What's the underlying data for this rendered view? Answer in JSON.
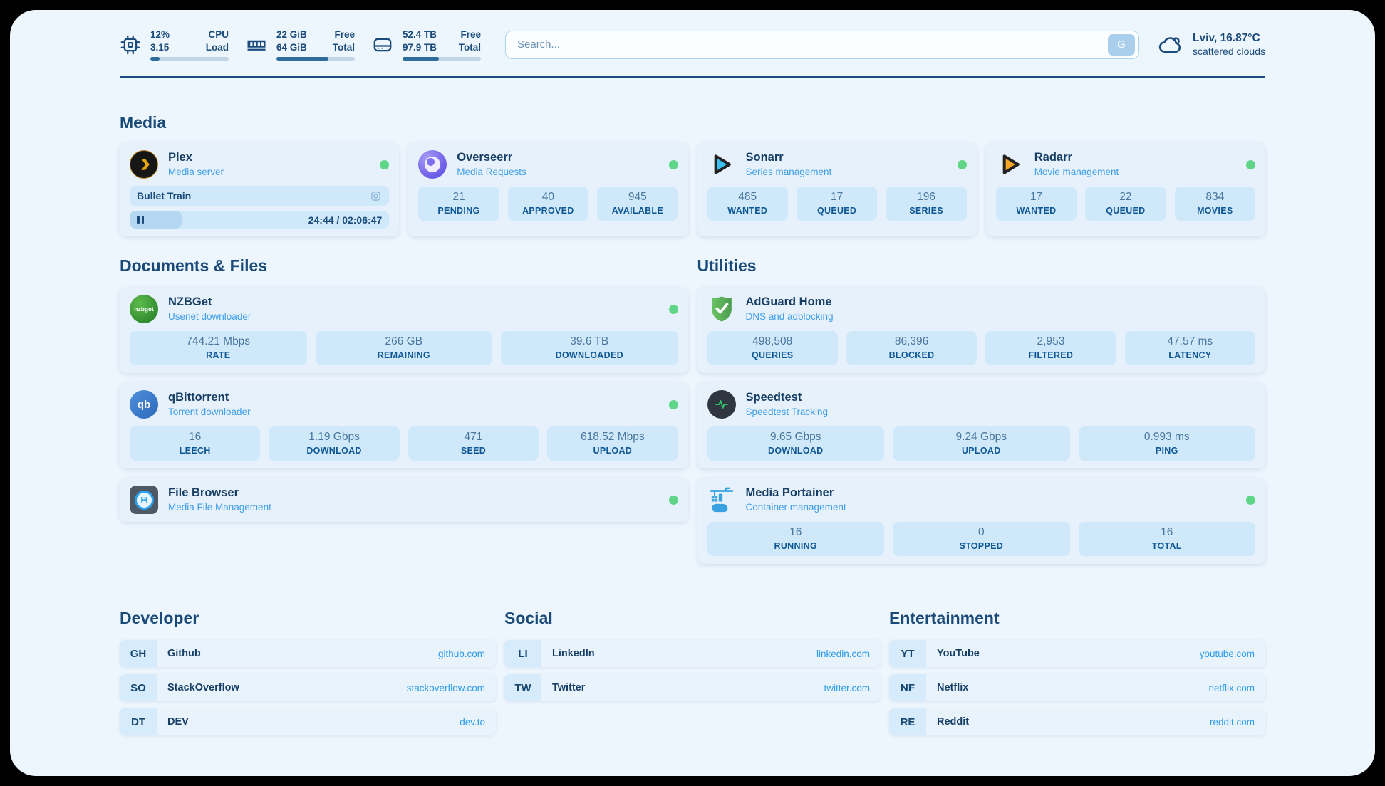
{
  "topbar": {
    "cpu": {
      "value1": "12%",
      "label1": "CPU",
      "value2": "3.15",
      "label2": "Load",
      "progress_pct": 12
    },
    "ram": {
      "value1": "22 GiB",
      "label1": "Free",
      "value2": "64 GiB",
      "label2": "Total",
      "progress_pct": 66
    },
    "disk": {
      "value1": "52.4 TB",
      "label1": "Free",
      "value2": "97.9 TB",
      "label2": "Total",
      "progress_pct": 46
    },
    "search": {
      "placeholder": "Search...",
      "engine_label": "G"
    },
    "weather": {
      "location_temp": "Lviv, 16.87°C",
      "condition": "scattered clouds"
    }
  },
  "media": {
    "heading": "Media",
    "plex": {
      "name": "Plex",
      "subtitle": "Media server",
      "status": "online",
      "stream": {
        "title": "Bullet Train",
        "time": "24:44 / 02:06:47",
        "progress_pct": 20
      }
    },
    "overseerr": {
      "name": "Overseerr",
      "subtitle": "Media Requests",
      "status": "online",
      "stats": [
        {
          "value": "21",
          "label": "PENDING"
        },
        {
          "value": "40",
          "label": "APPROVED"
        },
        {
          "value": "945",
          "label": "AVAILABLE"
        }
      ]
    },
    "sonarr": {
      "name": "Sonarr",
      "subtitle": "Series management",
      "status": "online",
      "stats": [
        {
          "value": "485",
          "label": "WANTED"
        },
        {
          "value": "17",
          "label": "QUEUED"
        },
        {
          "value": "196",
          "label": "SERIES"
        }
      ]
    },
    "radarr": {
      "name": "Radarr",
      "subtitle": "Movie management",
      "status": "online",
      "stats": [
        {
          "value": "17",
          "label": "WANTED"
        },
        {
          "value": "22",
          "label": "QUEUED"
        },
        {
          "value": "834",
          "label": "MOVIES"
        }
      ]
    }
  },
  "docs": {
    "heading": "Documents & Files",
    "nzbget": {
      "name": "NZBGet",
      "subtitle": "Usenet downloader",
      "status": "online",
      "stats": [
        {
          "value": "744.21 Mbps",
          "label": "RATE"
        },
        {
          "value": "266 GB",
          "label": "REMAINING"
        },
        {
          "value": "39.6 TB",
          "label": "DOWNLOADED"
        }
      ]
    },
    "qbittorrent": {
      "name": "qBittorrent",
      "subtitle": "Torrent downloader",
      "status": "online",
      "stats": [
        {
          "value": "16",
          "label": "LEECH"
        },
        {
          "value": "1.19 Gbps",
          "label": "DOWNLOAD"
        },
        {
          "value": "471",
          "label": "SEED"
        },
        {
          "value": "618.52 Mbps",
          "label": "UPLOAD"
        }
      ]
    },
    "filebrowser": {
      "name": "File Browser",
      "subtitle": "Media File Management",
      "status": "online"
    }
  },
  "utilities": {
    "heading": "Utilities",
    "adguard": {
      "name": "AdGuard Home",
      "subtitle": "DNS and adblocking",
      "status": "online",
      "stats": [
        {
          "value": "498,508",
          "label": "QUERIES"
        },
        {
          "value": "86,396",
          "label": "BLOCKED"
        },
        {
          "value": "2,953",
          "label": "FILTERED"
        },
        {
          "value": "47.57 ms",
          "label": "LATENCY"
        }
      ]
    },
    "speedtest": {
      "name": "Speedtest",
      "subtitle": "Speedtest Tracking",
      "status": "online",
      "stats": [
        {
          "value": "9.65 Gbps",
          "label": "DOWNLOAD"
        },
        {
          "value": "9.24 Gbps",
          "label": "UPLOAD"
        },
        {
          "value": "0.993 ms",
          "label": "PING"
        }
      ]
    },
    "portainer": {
      "name": "Media Portainer",
      "subtitle": "Container management",
      "status": "online",
      "stats": [
        {
          "value": "16",
          "label": "RUNNING"
        },
        {
          "value": "0",
          "label": "STOPPED"
        },
        {
          "value": "16",
          "label": "TOTAL"
        }
      ]
    }
  },
  "links": {
    "developer": {
      "heading": "Developer",
      "items": [
        {
          "abbr": "GH",
          "name": "Github",
          "url": "github.com"
        },
        {
          "abbr": "SO",
          "name": "StackOverflow",
          "url": "stackoverflow.com"
        },
        {
          "abbr": "DT",
          "name": "DEV",
          "url": "dev.to"
        }
      ]
    },
    "social": {
      "heading": "Social",
      "items": [
        {
          "abbr": "LI",
          "name": "LinkedIn",
          "url": "linkedin.com"
        },
        {
          "abbr": "TW",
          "name": "Twitter",
          "url": "twitter.com"
        }
      ]
    },
    "entertainment": {
      "heading": "Entertainment",
      "items": [
        {
          "abbr": "YT",
          "name": "YouTube",
          "url": "youtube.com"
        },
        {
          "abbr": "NF",
          "name": "Netflix",
          "url": "netflix.com"
        },
        {
          "abbr": "RE",
          "name": "Reddit",
          "url": "reddit.com"
        }
      ]
    }
  },
  "colors": {
    "accent": "#2d9cea",
    "status_online": "#5fd687",
    "navy": "#1b4b7a"
  }
}
